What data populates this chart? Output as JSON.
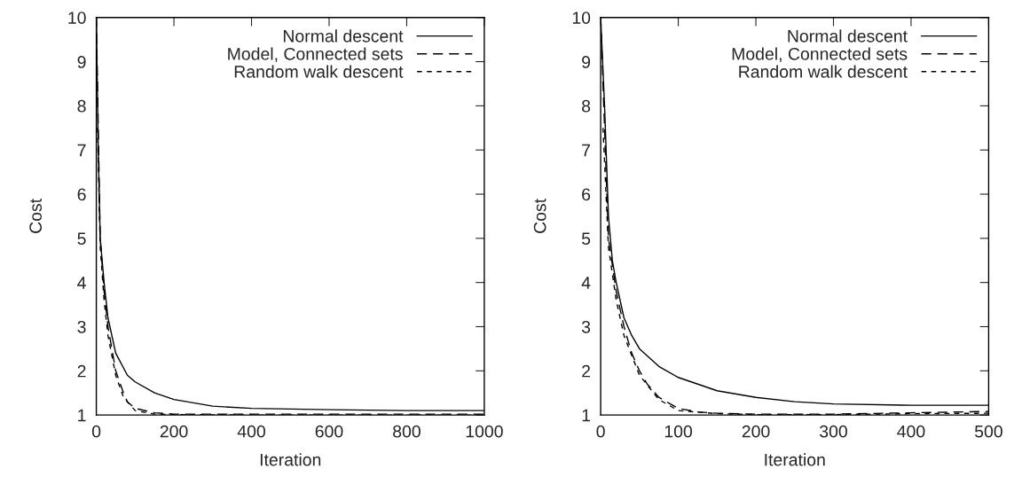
{
  "chart_data": [
    {
      "type": "line",
      "xlabel": "Iteration",
      "ylabel": "Cost",
      "xlim": [
        0,
        1000
      ],
      "ylim": [
        1,
        10
      ],
      "xticks": [
        0,
        200,
        400,
        600,
        800,
        1000
      ],
      "yticks": [
        1,
        2,
        3,
        4,
        5,
        6,
        7,
        8,
        9,
        10
      ],
      "legend": "top right",
      "grid": false,
      "series": [
        {
          "name": "Normal descent",
          "color": "#000000",
          "line_style": "solid",
          "x": [
            0,
            5,
            10,
            20,
            30,
            50,
            80,
            100,
            150,
            200,
            300,
            400,
            600,
            800,
            1000
          ],
          "values": [
            10,
            7,
            5,
            4,
            3.2,
            2.4,
            1.9,
            1.75,
            1.5,
            1.35,
            1.2,
            1.15,
            1.12,
            1.1,
            1.1
          ]
        },
        {
          "name": "Model, Connected sets",
          "color": "#000000",
          "line_style": "dashed",
          "x": [
            0,
            10,
            20,
            30,
            50,
            70,
            80,
            100,
            150,
            200,
            400,
            1000
          ],
          "values": [
            10,
            5,
            3.8,
            3.0,
            2.0,
            1.5,
            1.3,
            1.15,
            1.05,
            1.02,
            1.02,
            1.02
          ]
        },
        {
          "name": "Random walk descent",
          "color": "#000000",
          "line_style": "dotted",
          "x": [
            3,
            10,
            20,
            30,
            50,
            70,
            100,
            150,
            200,
            400,
            1000
          ],
          "values": [
            7.5,
            4.8,
            3.6,
            2.8,
            1.9,
            1.4,
            1.1,
            1.02,
            1.01,
            1.0,
            1.0
          ]
        }
      ]
    },
    {
      "type": "line",
      "xlabel": "Iteration",
      "ylabel": "Cost",
      "xlim": [
        0,
        500
      ],
      "ylim": [
        1,
        10
      ],
      "xticks": [
        0,
        100,
        200,
        300,
        400,
        500
      ],
      "yticks": [
        1,
        2,
        3,
        4,
        5,
        6,
        7,
        8,
        9,
        10
      ],
      "legend": "top right",
      "grid": false,
      "series": [
        {
          "name": "Normal descent",
          "color": "#000000",
          "line_style": "solid",
          "x": [
            0,
            5,
            10,
            15,
            20,
            30,
            40,
            50,
            75,
            100,
            150,
            200,
            250,
            300,
            400,
            500
          ],
          "values": [
            10,
            8,
            5.5,
            4.5,
            4,
            3.2,
            2.8,
            2.5,
            2.1,
            1.85,
            1.55,
            1.4,
            1.3,
            1.25,
            1.22,
            1.22
          ]
        },
        {
          "name": "Model, Connected sets",
          "color": "#000000",
          "line_style": "dashed",
          "x": [
            0,
            10,
            20,
            30,
            40,
            50,
            60,
            75,
            100,
            125,
            150,
            200,
            300,
            400,
            500
          ],
          "values": [
            10,
            5,
            3.8,
            3.0,
            2.4,
            2.0,
            1.7,
            1.4,
            1.15,
            1.07,
            1.04,
            1.02,
            1.02,
            1.05,
            1.08
          ]
        },
        {
          "name": "Random walk descent",
          "color": "#000000",
          "line_style": "dotted",
          "x": [
            3,
            10,
            20,
            30,
            50,
            75,
            100,
            150,
            200,
            300,
            400,
            500
          ],
          "values": [
            7.5,
            4.8,
            3.6,
            2.8,
            1.9,
            1.35,
            1.1,
            1.03,
            1.01,
            1.01,
            1.03,
            1.04
          ]
        }
      ]
    }
  ]
}
